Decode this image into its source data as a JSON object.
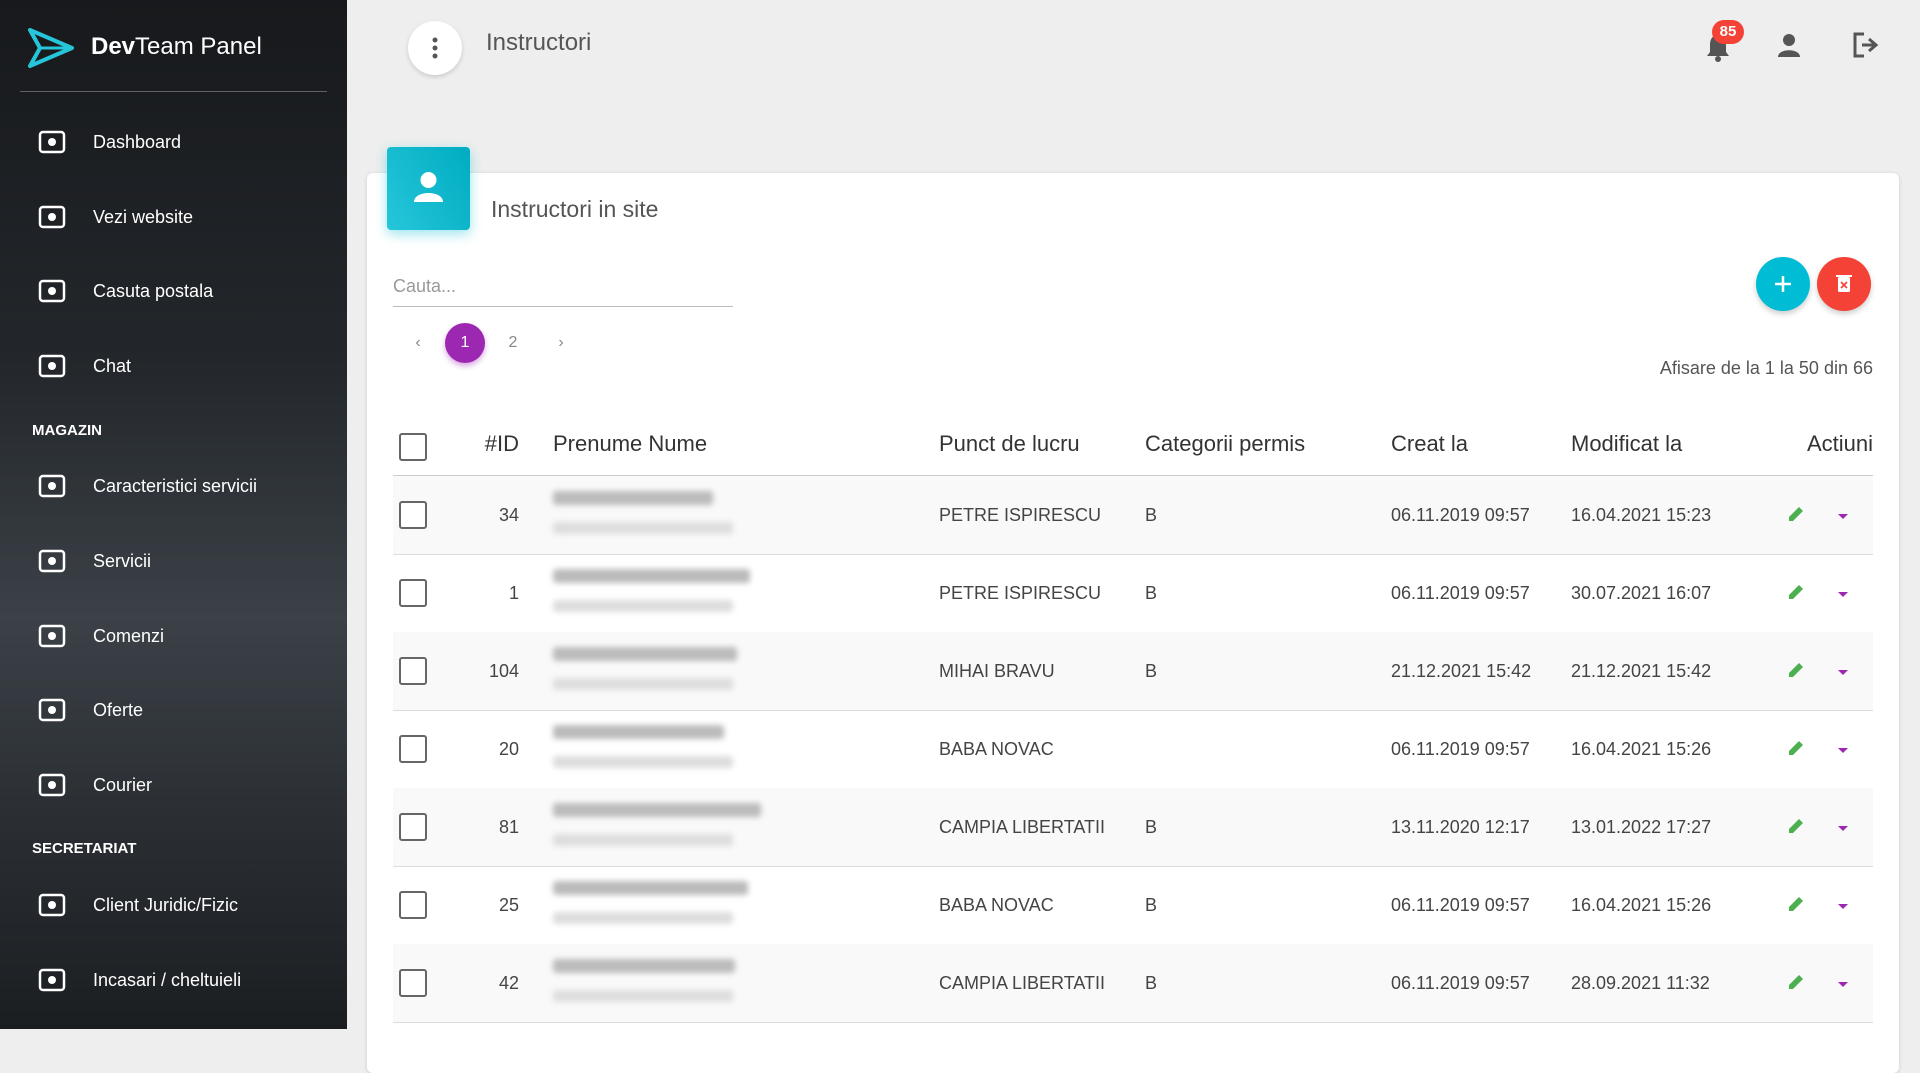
{
  "sidebar": {
    "brand_bold": "Dev",
    "brand_rest": "Team Panel",
    "items": [
      {
        "label": "Dashboard"
      },
      {
        "label": "Vezi website"
      },
      {
        "label": "Casuta postala"
      },
      {
        "label": "Chat"
      },
      {
        "section": "MAGAZIN"
      },
      {
        "label": "Caracteristici servicii"
      },
      {
        "label": "Servicii"
      },
      {
        "label": "Comenzi"
      },
      {
        "label": "Oferte"
      },
      {
        "label": "Courier"
      },
      {
        "section": "SECRETARIAT"
      },
      {
        "label": "Client Juridic/Fizic"
      },
      {
        "label": "Incasari / cheltuieli"
      }
    ]
  },
  "header": {
    "title": "Instructori",
    "notifications": "85"
  },
  "card": {
    "title": "Instructori in site",
    "search_placeholder": "Cauta...",
    "pagination": [
      "‹",
      "1",
      "2",
      "›"
    ],
    "summary": "Afisare de la 1 la 50 din 66",
    "table": {
      "columns": [
        "#ID",
        "Prenume Nume",
        "Punct de lucru",
        "Categorii permis",
        "Creat la",
        "Modificat la",
        "Actiuni"
      ],
      "rows": [
        [
          "34",
          "PETRE ISPIRESCU",
          "B",
          "06.11.2019 09:57",
          "16.04.2021 15:23"
        ],
        [
          "1",
          "PETRE ISPIRESCU",
          "B",
          "06.11.2019 09:57",
          "30.07.2021 16:07"
        ],
        [
          "104",
          "MIHAI BRAVU",
          "B",
          "21.12.2021 15:42",
          "21.12.2021 15:42"
        ],
        [
          "20",
          "BABA NOVAC",
          "",
          "06.11.2019 09:57",
          "16.04.2021 15:26"
        ],
        [
          "81",
          "CAMPIA LIBERTATII",
          "B",
          "13.11.2020 12:17",
          "13.01.2022 17:27"
        ],
        [
          "25",
          "BABA NOVAC",
          "B",
          "06.11.2019 09:57",
          "16.04.2021 15:26"
        ],
        [
          "42",
          "CAMPIA LIBERTATII",
          "B",
          "06.11.2019 09:57",
          "28.09.2021 11:32"
        ]
      ]
    }
  }
}
